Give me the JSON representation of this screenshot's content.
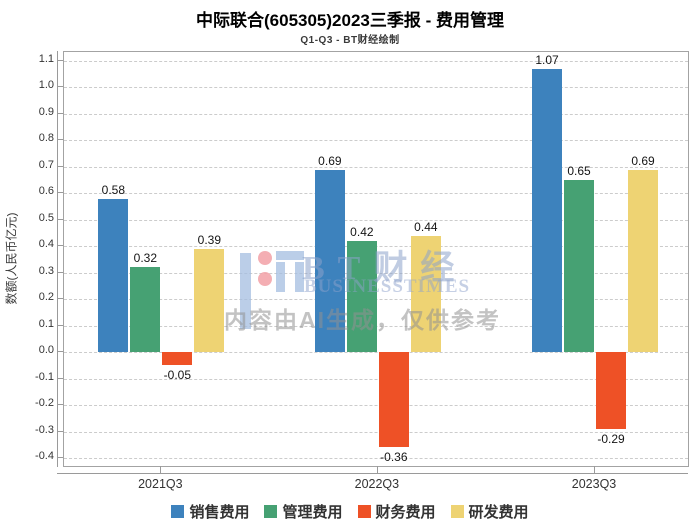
{
  "header": {
    "title": "中际联合(605305)2023三季报 - 费用管理",
    "subtitle": "Q1-Q3 - BT财经绘制"
  },
  "watermark": {
    "brand": "BT财经",
    "brand_sub": "BUSINESSTIMES",
    "disclaimer": "内容由AI生成，仅供参考",
    "brand_color": "#8da2cb",
    "logo_icon": "bt-logo-icon"
  },
  "chart_data": {
    "type": "bar",
    "title": "中际联合(605305)2023三季报 - 费用管理",
    "subtitle": "Q1-Q3 - BT财经绘制",
    "categories": [
      "2021Q3",
      "2022Q3",
      "2023Q3"
    ],
    "series": [
      {
        "name": "销售费用",
        "color": "#3d82bd",
        "values": [
          0.58,
          0.69,
          1.07
        ]
      },
      {
        "name": "管理费用",
        "color": "#46a173",
        "values": [
          0.32,
          0.42,
          0.65
        ]
      },
      {
        "name": "财务费用",
        "color": "#ee5126",
        "values": [
          -0.05,
          -0.36,
          -0.29
        ]
      },
      {
        "name": "研发费用",
        "color": "#eed373",
        "values": [
          0.39,
          0.44,
          0.69
        ]
      }
    ],
    "xlabel": "",
    "ylabel": "数额(人民币亿元)",
    "ylim": [
      -0.4,
      1.1
    ],
    "ytick_step": 0.1,
    "grid": true,
    "grid_style": "dashed",
    "legend_position": "bottom",
    "colors": {
      "grid": "#cccccc",
      "frame": "#a3a3a3",
      "axis": "#9a9a9a",
      "tick_label": "#333333",
      "value_label": "#151515"
    }
  }
}
